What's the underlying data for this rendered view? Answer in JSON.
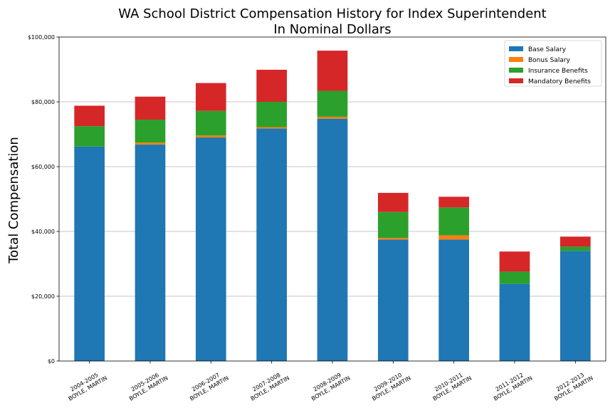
{
  "chart_data": {
    "type": "bar",
    "stacked": true,
    "title": "WA School District Compensation History for Index Superintendent",
    "subtitle": "In Nominal Dollars",
    "xlabel": "",
    "ylabel": "Total Compensation",
    "ylim": [
      0,
      100000
    ],
    "yticks": [
      0,
      20000,
      40000,
      60000,
      80000,
      100000
    ],
    "ytick_labels": [
      "$0",
      "$20,000",
      "$40,000",
      "$60,000",
      "$80,000",
      "$100,000"
    ],
    "grid": "horizontal",
    "legend_position": "top-right",
    "categories": [
      [
        "2004-2005",
        "BOYLE, MARTIN"
      ],
      [
        "2005-2006",
        "BOYLE, MARTIN"
      ],
      [
        "2006-2007",
        "BOYLE, MARTIN"
      ],
      [
        "2007-2008",
        "BOYLE, MARTIN"
      ],
      [
        "2008-2009",
        "BOYLE, MARTIN"
      ],
      [
        "2009-2010",
        "BOYLE, MARTIN"
      ],
      [
        "2010-2011",
        "BOYLE, MARTIN"
      ],
      [
        "2011-2012",
        "BOYLE, MARTIN"
      ],
      [
        "2012-2013",
        "BOYLE, MARTIN"
      ]
    ],
    "series": [
      {
        "name": "Base Salary",
        "color": "#1f77b4",
        "values": [
          66200,
          66800,
          69000,
          71800,
          74800,
          37500,
          37500,
          23800,
          34000
        ]
      },
      {
        "name": "Bonus Salary",
        "color": "#ff7f0e",
        "values": [
          0,
          600,
          600,
          400,
          600,
          500,
          1300,
          0,
          0
        ]
      },
      {
        "name": "Insurance Benefits",
        "color": "#2ca02c",
        "values": [
          6300,
          7100,
          7600,
          7800,
          8000,
          8000,
          8600,
          3800,
          1300
        ]
      },
      {
        "name": "Mandatory Benefits",
        "color": "#d62728",
        "values": [
          6300,
          7100,
          8600,
          9900,
          12400,
          5900,
          3300,
          6200,
          3100
        ]
      }
    ]
  }
}
